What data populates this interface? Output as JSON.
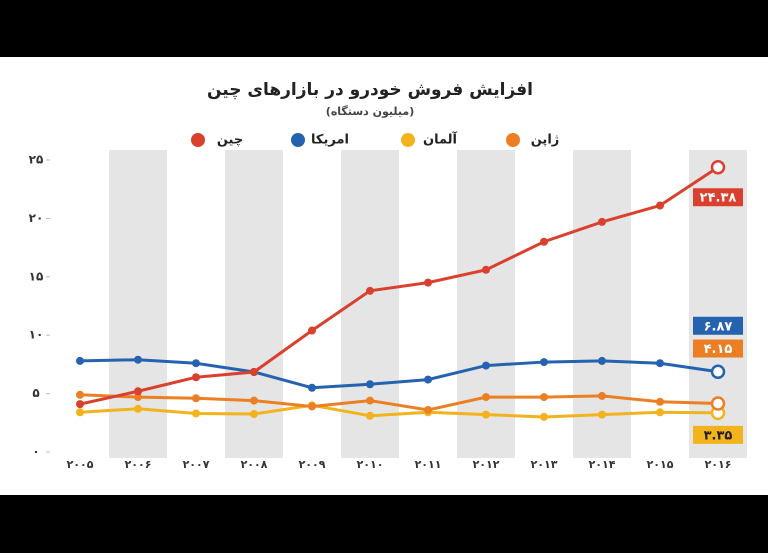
{
  "chart_data": {
    "type": "line",
    "title": "افزایش فروش خودرو در بازارهای چین",
    "subtitle": "(میلیون دستگاه)",
    "categories": [
      "۲۰۰۵",
      "۲۰۰۶",
      "۲۰۰۷",
      "۲۰۰۸",
      "۲۰۰۹",
      "۲۰۱۰",
      "۲۰۱۱",
      "۲۰۱۲",
      "۲۰۱۳",
      "۲۰۱۴",
      "۲۰۱۵",
      "۲۰۱۶"
    ],
    "series": [
      {
        "name": "چین",
        "color": "#d9412e",
        "values": [
          4.1,
          5.2,
          6.4,
          6.85,
          10.4,
          13.8,
          14.5,
          15.6,
          18.0,
          19.7,
          21.1,
          24.38
        ],
        "value_labels": [
          null,
          null,
          null,
          null,
          null,
          null,
          null,
          null,
          null,
          null,
          null,
          "۲۴.۳۸"
        ]
      },
      {
        "name": "امریکا",
        "color": "#2563b0",
        "values": [
          7.8,
          7.9,
          7.6,
          6.85,
          5.5,
          5.8,
          6.2,
          7.4,
          7.7,
          7.8,
          7.6,
          6.87
        ],
        "value_labels": [
          null,
          null,
          null,
          null,
          null,
          null,
          null,
          null,
          null,
          null,
          null,
          "۶.۸۷"
        ]
      },
      {
        "name": "آلمان",
        "color": "#f2b31c",
        "values": [
          3.4,
          3.7,
          3.3,
          3.25,
          4.0,
          3.1,
          3.4,
          3.2,
          3.0,
          3.2,
          3.4,
          3.35
        ],
        "value_labels": [
          null,
          null,
          null,
          null,
          null,
          null,
          null,
          null,
          null,
          null,
          null,
          "۳.۳۵"
        ]
      },
      {
        "name": "ژاپن",
        "color": "#ec7f24",
        "values": [
          4.9,
          4.7,
          4.6,
          4.4,
          3.9,
          4.4,
          3.6,
          4.7,
          4.7,
          4.8,
          4.3,
          4.15
        ],
        "value_labels": [
          null,
          null,
          null,
          null,
          null,
          null,
          null,
          null,
          null,
          null,
          null,
          "۴.۱۵"
        ]
      }
    ],
    "ylim": [
      0,
      25
    ],
    "yticks": [
      {
        "value": 0,
        "label": "۰"
      },
      {
        "value": 5,
        "label": "۵"
      },
      {
        "value": 10,
        "label": "۱۰"
      },
      {
        "value": 15,
        "label": "۱۵"
      },
      {
        "value": 20,
        "label": "۲۰"
      },
      {
        "value": 25,
        "label": "۲۵"
      }
    ]
  }
}
